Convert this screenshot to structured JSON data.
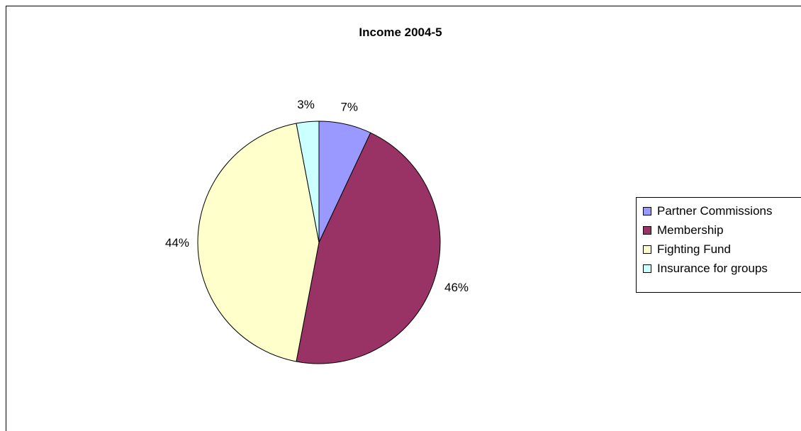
{
  "chart_data": {
    "type": "pie",
    "title": "Income 2004-5",
    "categories": [
      "Partner Commissions",
      "Membership",
      "Fighting Fund",
      "Insurance for groups"
    ],
    "values": [
      7,
      46,
      44,
      3
    ],
    "labels": [
      "7%",
      "46%",
      "44%",
      "3%"
    ],
    "colors": [
      "#9999FF",
      "#993366",
      "#FFFFCC",
      "#CCFFFF"
    ],
    "legend_position": "right",
    "start_angle_deg": 0,
    "direction": "clockwise"
  }
}
